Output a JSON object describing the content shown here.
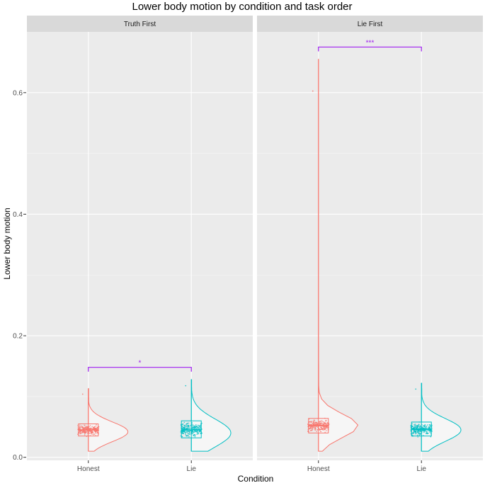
{
  "chart_data": {
    "type": "scatter",
    "title": "Lower body motion by condition and task order",
    "xlabel": "Condition",
    "ylabel": "Lower body motion",
    "ylim": [
      -0.005,
      0.7
    ],
    "yticks": [
      0.0,
      0.2,
      0.4,
      0.6
    ],
    "ytick_labels": [
      "0.0",
      "0.2",
      "0.4",
      "0.6"
    ],
    "categories": [
      "Honest",
      "Lie"
    ],
    "grid": true,
    "plot_style": "raincloud: jittered points, boxplot, half-violin",
    "colors": {
      "Honest": "#F8766D",
      "Lie": "#00BFC4",
      "significance": "#A020F0",
      "panel_bg": "#EBEBEB",
      "strip_bg": "#D9D9D9"
    },
    "panels": [
      {
        "facet": "Truth First",
        "groups": [
          {
            "condition": "Honest",
            "min": 0.01,
            "q1": 0.035,
            "median": 0.045,
            "q3": 0.055,
            "max": 0.113,
            "mode": 0.042
          },
          {
            "condition": "Lie",
            "min": 0.01,
            "q1": 0.032,
            "median": 0.045,
            "q3": 0.06,
            "max": 0.128,
            "mode": 0.04
          }
        ],
        "significance": {
          "label": "*",
          "y": 0.148
        }
      },
      {
        "facet": "Lie First",
        "groups": [
          {
            "condition": "Honest",
            "min": 0.01,
            "q1": 0.04,
            "median": 0.052,
            "q3": 0.064,
            "max": 0.655,
            "mode": 0.052
          },
          {
            "condition": "Lie",
            "min": 0.01,
            "q1": 0.035,
            "median": 0.046,
            "q3": 0.058,
            "max": 0.122,
            "mode": 0.045
          }
        ],
        "significance": {
          "label": "***",
          "y": 0.675
        }
      }
    ]
  }
}
